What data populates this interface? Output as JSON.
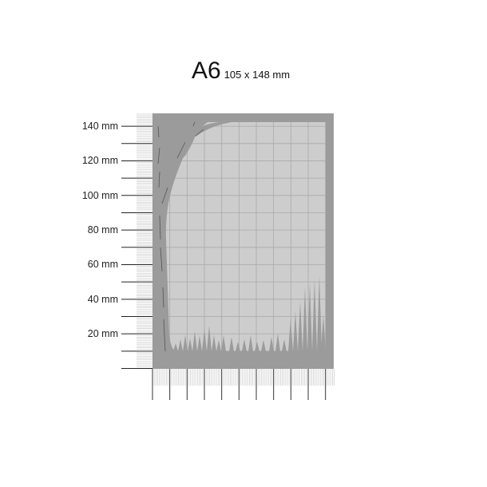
{
  "title": {
    "format": "A6",
    "dimensions": "105 x 148 mm"
  },
  "ruler": {
    "unit": "mm",
    "y_labels": [
      "140 mm",
      "120 mm",
      "100 mm",
      "80 mm",
      "60 mm",
      "40 mm",
      "20 mm"
    ]
  },
  "colors": {
    "frame": "#9b9b9b",
    "inner": "#cdcdcd",
    "grid": "#a9a9a9",
    "ruler_hatch": "#c8c8c8",
    "tick": "#222222"
  }
}
